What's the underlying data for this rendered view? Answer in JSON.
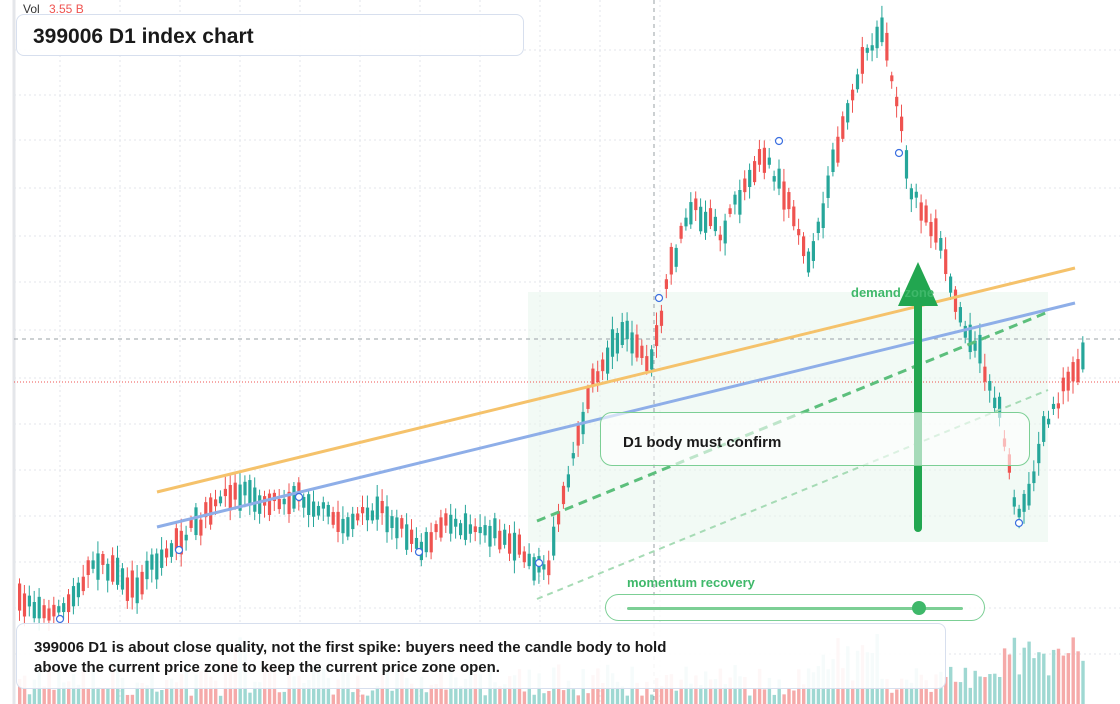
{
  "header": {
    "vol_label": "Vol",
    "vol_value": "3.55 B",
    "title": "399006 D1 index chart"
  },
  "annotations": {
    "confirm": "D1 body must confirm",
    "momentum": "momentum recovery",
    "momentum_level": 0.87,
    "demand": "demand zone",
    "note": "399006 D1 is about close quality, not the first spike: buyers need the candle body to hold above the current price zone to keep the current price zone open."
  },
  "colors": {
    "up": "#26a69a",
    "down": "#ef5350",
    "ma_slow": "#f5c26b",
    "ma_fast": "#8eaee8",
    "accent": "#22a650"
  },
  "chart_data": {
    "type": "candlestick",
    "title": "399006 D1 index chart",
    "symbol": "399006",
    "timeframe": "D1",
    "volume_readout": "3.55 B",
    "series": [
      {
        "type": "candles"
      },
      {
        "type": "volume"
      },
      {
        "type": "line",
        "role": "slow moving average"
      },
      {
        "type": "line",
        "role": "fast moving average"
      },
      {
        "type": "line",
        "role": "dashed trend line"
      }
    ],
    "grid": true
  }
}
